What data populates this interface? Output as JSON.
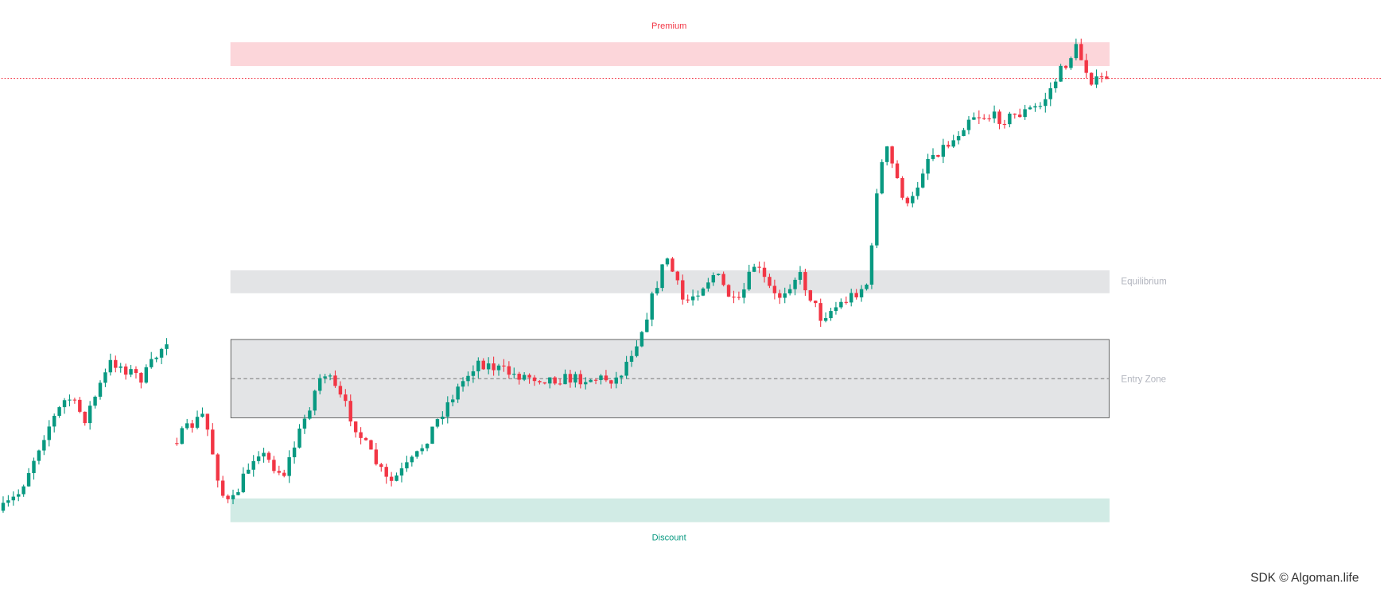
{
  "zones": {
    "premium": "Premium",
    "equilibrium": "Equilibrium",
    "entry": "Entry Zone",
    "discount": "Discount"
  },
  "watermark": "SDK © Algoman.life"
}
